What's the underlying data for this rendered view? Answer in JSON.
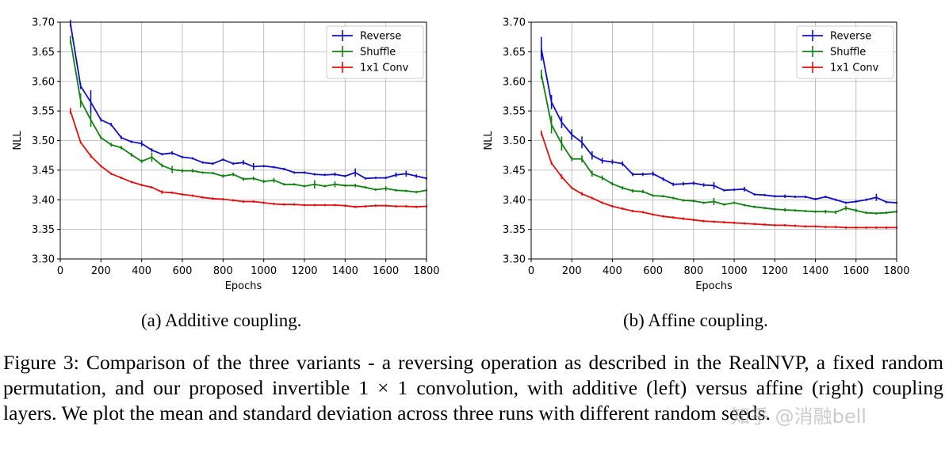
{
  "figure_caption": "Figure 3: Comparison of the three variants - a reversing operation as described in the RealNVP, a fixed random permutation, and our proposed invertible 1 × 1 convolution, with additive (left) versus affine (right) coupling layers. We plot the mean and standard deviation across three runs with different random seeds.",
  "watermark": "知乎 @消融bell",
  "chart_data": [
    {
      "type": "line",
      "subcaption": "(a) Additive coupling.",
      "xlabel": "Epochs",
      "ylabel": "NLL",
      "xlim": [
        0,
        1800
      ],
      "ylim": [
        3.3,
        3.7
      ],
      "xticks": [
        "0",
        "200",
        "400",
        "600",
        "800",
        "1000",
        "1200",
        "1400",
        "1600",
        "1800"
      ],
      "yticks": [
        "3.30",
        "3.35",
        "3.40",
        "3.45",
        "3.50",
        "3.55",
        "3.60",
        "3.65",
        "3.70"
      ],
      "grid": true,
      "legend": "top-right",
      "series": [
        {
          "name": "Reverse",
          "color": "#1010c0",
          "x": [
            50,
            100,
            150,
            200,
            250,
            300,
            350,
            400,
            450,
            500,
            550,
            600,
            650,
            700,
            750,
            800,
            850,
            900,
            950,
            1000,
            1050,
            1100,
            1150,
            1200,
            1250,
            1300,
            1350,
            1400,
            1450,
            1500,
            1550,
            1600,
            1650,
            1700,
            1750,
            1800
          ],
          "y": [
            3.698,
            3.592,
            3.565,
            3.535,
            3.527,
            3.505,
            3.498,
            3.495,
            3.484,
            3.477,
            3.479,
            3.472,
            3.47,
            3.463,
            3.461,
            3.468,
            3.461,
            3.463,
            3.456,
            3.457,
            3.455,
            3.452,
            3.446,
            3.446,
            3.443,
            3.442,
            3.443,
            3.44,
            3.446,
            3.436,
            3.437,
            3.437,
            3.442,
            3.444,
            3.44,
            3.436
          ],
          "err": [
            0.006,
            0.005,
            0.02,
            0.003,
            0.003,
            0.003,
            0.002,
            0.005,
            0.003,
            0.002,
            0.003,
            0.002,
            0.002,
            0.002,
            0.002,
            0.002,
            0.002,
            0.004,
            0.006,
            0.002,
            0.002,
            0.002,
            0.002,
            0.002,
            0.002,
            0.002,
            0.003,
            0.002,
            0.007,
            0.002,
            0.002,
            0.002,
            0.004,
            0.005,
            0.003,
            0.002
          ]
        },
        {
          "name": "Shuffle",
          "color": "#108010",
          "x": [
            50,
            100,
            150,
            200,
            250,
            300,
            350,
            400,
            450,
            500,
            550,
            600,
            650,
            700,
            750,
            800,
            850,
            900,
            950,
            1000,
            1050,
            1100,
            1150,
            1200,
            1250,
            1300,
            1350,
            1400,
            1450,
            1500,
            1550,
            1600,
            1650,
            1700,
            1750,
            1800
          ],
          "y": [
            3.67,
            3.568,
            3.535,
            3.505,
            3.493,
            3.488,
            3.476,
            3.465,
            3.472,
            3.458,
            3.451,
            3.449,
            3.449,
            3.446,
            3.445,
            3.44,
            3.443,
            3.435,
            3.436,
            3.431,
            3.433,
            3.426,
            3.426,
            3.423,
            3.426,
            3.423,
            3.426,
            3.424,
            3.424,
            3.421,
            3.417,
            3.419,
            3.416,
            3.415,
            3.413,
            3.416
          ],
          "err": [
            0.007,
            0.012,
            0.012,
            0.003,
            0.003,
            0.003,
            0.003,
            0.003,
            0.008,
            0.003,
            0.006,
            0.003,
            0.003,
            0.002,
            0.002,
            0.003,
            0.003,
            0.003,
            0.003,
            0.003,
            0.004,
            0.002,
            0.002,
            0.002,
            0.007,
            0.002,
            0.005,
            0.002,
            0.003,
            0.002,
            0.002,
            0.004,
            0.002,
            0.002,
            0.002,
            0.002
          ]
        },
        {
          "name": "1x1 Conv",
          "color": "#e01010",
          "x": [
            50,
            100,
            150,
            200,
            250,
            300,
            350,
            400,
            450,
            500,
            550,
            600,
            650,
            700,
            750,
            800,
            850,
            900,
            950,
            1000,
            1050,
            1100,
            1150,
            1200,
            1250,
            1300,
            1350,
            1400,
            1450,
            1500,
            1550,
            1600,
            1650,
            1700,
            1750,
            1800
          ],
          "y": [
            3.55,
            3.497,
            3.474,
            3.457,
            3.444,
            3.437,
            3.43,
            3.425,
            3.421,
            3.413,
            3.412,
            3.409,
            3.407,
            3.404,
            3.402,
            3.401,
            3.399,
            3.397,
            3.397,
            3.395,
            3.393,
            3.392,
            3.392,
            3.391,
            3.391,
            3.391,
            3.391,
            3.39,
            3.388,
            3.389,
            3.39,
            3.39,
            3.389,
            3.389,
            3.388,
            3.389
          ],
          "err": [
            0.005,
            0.002,
            0.003,
            0.002,
            0.002,
            0.002,
            0.002,
            0.002,
            0.002,
            0.003,
            0.002,
            0.002,
            0.002,
            0.002,
            0.002,
            0.002,
            0.002,
            0.002,
            0.002,
            0.002,
            0.002,
            0.002,
            0.002,
            0.002,
            0.002,
            0.002,
            0.002,
            0.002,
            0.002,
            0.002,
            0.002,
            0.002,
            0.002,
            0.002,
            0.002,
            0.002
          ]
        }
      ]
    },
    {
      "type": "line",
      "subcaption": "(b) Affine coupling.",
      "xlabel": "Epochs",
      "ylabel": "NLL",
      "xlim": [
        0,
        1800
      ],
      "ylim": [
        3.3,
        3.7
      ],
      "xticks": [
        "0",
        "200",
        "400",
        "600",
        "800",
        "1000",
        "1200",
        "1400",
        "1600",
        "1800"
      ],
      "yticks": [
        "3.30",
        "3.35",
        "3.40",
        "3.45",
        "3.50",
        "3.55",
        "3.60",
        "3.65",
        "3.70"
      ],
      "grid": true,
      "legend": "top-right",
      "series": [
        {
          "name": "Reverse",
          "color": "#1010c0",
          "x": [
            50,
            100,
            150,
            200,
            250,
            300,
            350,
            400,
            450,
            500,
            550,
            600,
            650,
            700,
            750,
            800,
            850,
            900,
            950,
            1000,
            1050,
            1100,
            1150,
            1200,
            1250,
            1300,
            1350,
            1400,
            1450,
            1500,
            1550,
            1600,
            1650,
            1700,
            1750,
            1800
          ],
          "y": [
            3.655,
            3.565,
            3.531,
            3.51,
            3.497,
            3.475,
            3.466,
            3.464,
            3.461,
            3.443,
            3.443,
            3.444,
            3.435,
            3.426,
            3.427,
            3.428,
            3.425,
            3.424,
            3.416,
            3.417,
            3.418,
            3.409,
            3.408,
            3.406,
            3.406,
            3.405,
            3.405,
            3.401,
            3.405,
            3.4,
            3.395,
            3.397,
            3.4,
            3.404,
            3.396,
            3.395
          ],
          "err": [
            0.02,
            0.012,
            0.01,
            0.009,
            0.01,
            0.007,
            0.005,
            0.004,
            0.004,
            0.003,
            0.003,
            0.004,
            0.003,
            0.003,
            0.003,
            0.003,
            0.003,
            0.006,
            0.002,
            0.002,
            0.004,
            0.002,
            0.002,
            0.002,
            0.003,
            0.002,
            0.002,
            0.002,
            0.002,
            0.002,
            0.002,
            0.002,
            0.002,
            0.006,
            0.002,
            0.002
          ]
        },
        {
          "name": "Shuffle",
          "color": "#108010",
          "x": [
            50,
            100,
            150,
            200,
            250,
            300,
            350,
            400,
            450,
            500,
            550,
            600,
            650,
            700,
            750,
            800,
            850,
            900,
            950,
            1000,
            1050,
            1100,
            1150,
            1200,
            1250,
            1300,
            1350,
            1400,
            1450,
            1500,
            1550,
            1600,
            1650,
            1700,
            1750,
            1800
          ],
          "y": [
            3.612,
            3.527,
            3.495,
            3.469,
            3.469,
            3.444,
            3.437,
            3.427,
            3.42,
            3.415,
            3.414,
            3.407,
            3.406,
            3.403,
            3.399,
            3.398,
            3.395,
            3.397,
            3.392,
            3.395,
            3.391,
            3.388,
            3.386,
            3.384,
            3.383,
            3.382,
            3.381,
            3.38,
            3.38,
            3.379,
            3.386,
            3.382,
            3.378,
            3.377,
            3.378,
            3.38
          ],
          "err": [
            0.008,
            0.015,
            0.012,
            0.004,
            0.006,
            0.005,
            0.004,
            0.003,
            0.003,
            0.003,
            0.003,
            0.002,
            0.002,
            0.002,
            0.002,
            0.002,
            0.002,
            0.006,
            0.002,
            0.002,
            0.002,
            0.002,
            0.002,
            0.002,
            0.003,
            0.002,
            0.002,
            0.002,
            0.003,
            0.003,
            0.004,
            0.003,
            0.002,
            0.002,
            0.002,
            0.002
          ]
        },
        {
          "name": "1x1 Conv",
          "color": "#e01010",
          "x": [
            50,
            100,
            150,
            200,
            250,
            300,
            350,
            400,
            450,
            500,
            550,
            600,
            650,
            700,
            750,
            800,
            850,
            900,
            950,
            1000,
            1050,
            1100,
            1150,
            1200,
            1250,
            1300,
            1350,
            1400,
            1450,
            1500,
            1550,
            1600,
            1650,
            1700,
            1750,
            1800
          ],
          "y": [
            3.513,
            3.462,
            3.439,
            3.42,
            3.41,
            3.403,
            3.395,
            3.389,
            3.385,
            3.381,
            3.379,
            3.375,
            3.372,
            3.37,
            3.368,
            3.366,
            3.364,
            3.363,
            3.362,
            3.361,
            3.36,
            3.359,
            3.358,
            3.357,
            3.357,
            3.356,
            3.355,
            3.355,
            3.354,
            3.354,
            3.353,
            3.353,
            3.353,
            3.353,
            3.353,
            3.353
          ],
          "err": [
            0.004,
            0.003,
            0.004,
            0.002,
            0.003,
            0.002,
            0.002,
            0.002,
            0.002,
            0.002,
            0.002,
            0.002,
            0.002,
            0.002,
            0.002,
            0.002,
            0.002,
            0.002,
            0.002,
            0.002,
            0.002,
            0.002,
            0.002,
            0.002,
            0.002,
            0.002,
            0.002,
            0.002,
            0.002,
            0.002,
            0.002,
            0.002,
            0.002,
            0.002,
            0.002,
            0.002
          ]
        }
      ]
    }
  ]
}
